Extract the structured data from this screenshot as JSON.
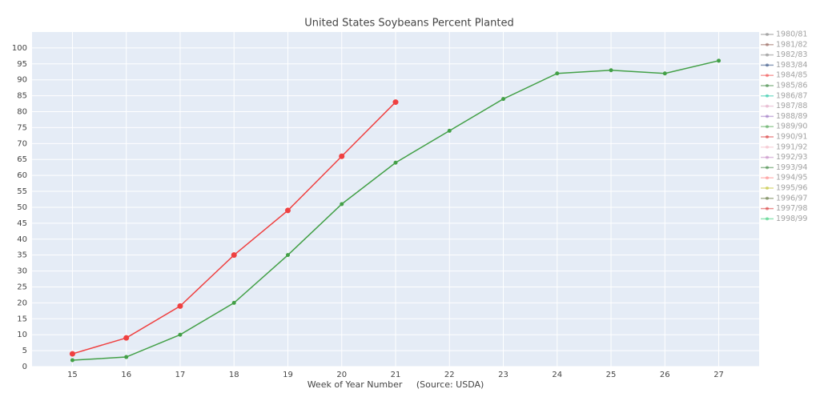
{
  "chart_data": {
    "type": "line",
    "title": "United States Soybeans Percent Planted",
    "x_label": "Week of Year Number     (Source: USDA)",
    "x": [
      15,
      16,
      17,
      18,
      19,
      20,
      21,
      22,
      23,
      24,
      25,
      26,
      27
    ],
    "series": [
      {
        "color": "#ef4040",
        "values": [
          4,
          9,
          19,
          35,
          49,
          66,
          83,
          null,
          null,
          null,
          null,
          null,
          null
        ]
      },
      {
        "color": "#43a047",
        "values": [
          2,
          3,
          10,
          20,
          35,
          51,
          64,
          74,
          84,
          92,
          93,
          92,
          96
        ]
      }
    ],
    "xlim": [
      14.25,
      27.75
    ],
    "xticks": [
      15,
      16,
      17,
      18,
      19,
      20,
      21,
      22,
      23,
      24,
      25,
      26,
      27
    ],
    "ylim": [
      0,
      105
    ],
    "yticks": [
      0,
      5,
      10,
      15,
      20,
      25,
      30,
      35,
      40,
      45,
      50,
      55,
      60,
      65,
      70,
      75,
      80,
      85,
      90,
      95,
      100
    ],
    "grid": true,
    "legend_entries": [
      {
        "name": "1980/81",
        "color": "#7f7f7f"
      },
      {
        "name": "1981/82",
        "color": "#8c564b"
      },
      {
        "name": "1982/83",
        "color": "#7f7f7f"
      },
      {
        "name": "1983/84",
        "color": "#1f3f77"
      },
      {
        "name": "1984/85",
        "color": "#ef4040"
      },
      {
        "name": "1985/86",
        "color": "#2e7d32"
      },
      {
        "name": "1986/87",
        "color": "#17c3a0"
      },
      {
        "name": "1987/88",
        "color": "#e0a0c0"
      },
      {
        "name": "1988/89",
        "color": "#9467bd"
      },
      {
        "name": "1989/90",
        "color": "#43a047"
      },
      {
        "name": "1990/91",
        "color": "#d62728"
      },
      {
        "name": "1991/92",
        "color": "#f4b6c2"
      },
      {
        "name": "1992/93",
        "color": "#c080c0"
      },
      {
        "name": "1993/94",
        "color": "#2e7d32"
      },
      {
        "name": "1994/95",
        "color": "#ff7f7f"
      },
      {
        "name": "1995/96",
        "color": "#bcbd22"
      },
      {
        "name": "1996/97",
        "color": "#556b2f"
      },
      {
        "name": "1997/98",
        "color": "#d62728"
      },
      {
        "name": "1998/99",
        "color": "#2ecc71"
      }
    ]
  }
}
